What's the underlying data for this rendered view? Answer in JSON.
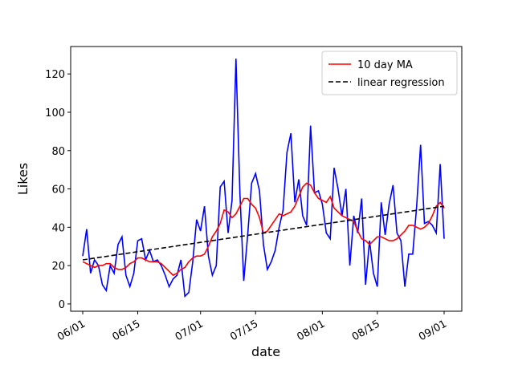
{
  "chart_data": {
    "type": "line",
    "x_label": "date",
    "y_label": "Likes",
    "x": [
      "06/01",
      "06/02",
      "06/03",
      "06/04",
      "06/05",
      "06/06",
      "06/07",
      "06/08",
      "06/09",
      "06/10",
      "06/11",
      "06/12",
      "06/13",
      "06/14",
      "06/15",
      "06/16",
      "06/17",
      "06/18",
      "06/19",
      "06/20",
      "06/21",
      "06/22",
      "06/23",
      "06/24",
      "06/25",
      "06/26",
      "06/27",
      "06/28",
      "06/29",
      "06/30",
      "07/01",
      "07/02",
      "07/03",
      "07/04",
      "07/05",
      "07/06",
      "07/07",
      "07/08",
      "07/09",
      "07/10",
      "07/11",
      "07/12",
      "07/13",
      "07/14",
      "07/15",
      "07/16",
      "07/17",
      "07/18",
      "07/19",
      "07/20",
      "07/21",
      "07/22",
      "07/23",
      "07/24",
      "07/25",
      "07/26",
      "07/27",
      "07/28",
      "07/29",
      "07/30",
      "07/31",
      "08/01",
      "08/02",
      "08/03",
      "08/04",
      "08/05",
      "08/06",
      "08/07",
      "08/08",
      "08/09",
      "08/10",
      "08/11",
      "08/12",
      "08/13",
      "08/14",
      "08/15",
      "08/16",
      "08/17",
      "08/18",
      "08/19",
      "08/20",
      "08/21",
      "08/22",
      "08/23",
      "08/24",
      "08/25",
      "08/26",
      "08/27",
      "08/28",
      "08/29",
      "08/30",
      "08/31",
      "09/01"
    ],
    "series": [
      {
        "color": "#0000ff",
        "style": "solid",
        "values": [
          25,
          39,
          16,
          23,
          20,
          10,
          7,
          20,
          16,
          31,
          35,
          15,
          9,
          16,
          33,
          34,
          23,
          28,
          22,
          23,
          20,
          15,
          9,
          13,
          15,
          23,
          4,
          6,
          22,
          44,
          38,
          51,
          25,
          15,
          20,
          61,
          64,
          37,
          54,
          128,
          58,
          12,
          36,
          63,
          68,
          59,
          31,
          18,
          22,
          28,
          40,
          49,
          79,
          89,
          53,
          65,
          46,
          41,
          93,
          58,
          59,
          52,
          37,
          34,
          71,
          60,
          46,
          60,
          20,
          46,
          37,
          55,
          10,
          33,
          16,
          9,
          53,
          36,
          52,
          62,
          37,
          33,
          9,
          26,
          26,
          51,
          83,
          42,
          43,
          41,
          37,
          73,
          34
        ]
      },
      {
        "name": "10 day MA",
        "color": "#ff0000",
        "style": "solid",
        "values": [
          22,
          21,
          20,
          19,
          20,
          20,
          21,
          21,
          19,
          18,
          18,
          19,
          21,
          22,
          24,
          24,
          23,
          22,
          22,
          22,
          21,
          19,
          17,
          15,
          16,
          18,
          19,
          22,
          24,
          25,
          25,
          26,
          30,
          35,
          38,
          42,
          49,
          48,
          45,
          47,
          51,
          55,
          55,
          52,
          50,
          45,
          37,
          38,
          41,
          44,
          47,
          46,
          47,
          48,
          51,
          56,
          61,
          63,
          62,
          58,
          55,
          54,
          53,
          56,
          50,
          48,
          46,
          45,
          44,
          43,
          38,
          34,
          33,
          31,
          33,
          35,
          35,
          34,
          33,
          33,
          34,
          36,
          38,
          41,
          41,
          40,
          39,
          40,
          42,
          46,
          51,
          53,
          50
        ]
      },
      {
        "name": "linear regression",
        "color": "#000000",
        "style": "dashed",
        "x": [
          "06/01",
          "09/01"
        ],
        "values": [
          23,
          51
        ]
      }
    ],
    "ylim": [
      -3.8,
      134.3
    ],
    "yticks": [
      0,
      20,
      40,
      60,
      80,
      100,
      120
    ],
    "xticks": [
      "06/01",
      "06/15",
      "07/01",
      "07/15",
      "08/01",
      "08/15",
      "09/01"
    ],
    "legend": "upper right"
  }
}
